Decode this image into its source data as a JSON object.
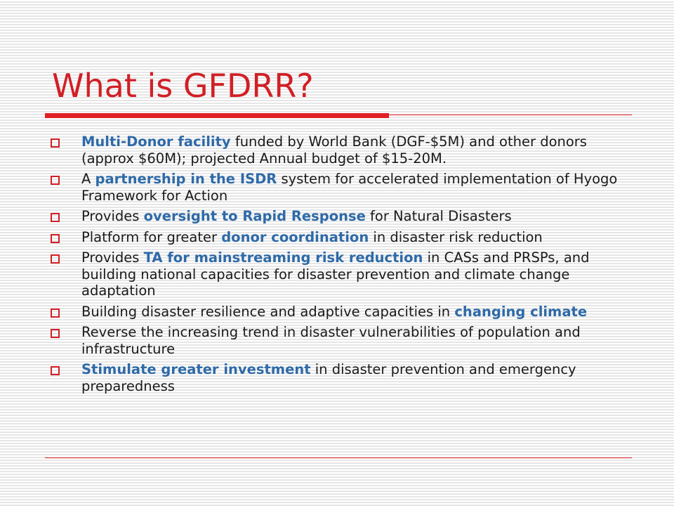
{
  "title": "What is GFDRR?",
  "colors": {
    "title": "#d11f26",
    "accent_rule": "#e01f26",
    "bullet_marker": "#d11f26",
    "highlight": "#2e6aa8",
    "body_text": "#1a1a1a"
  },
  "bullets": [
    {
      "segments": [
        {
          "text": "Multi-Donor facility",
          "highlight": true
        },
        {
          "text": " funded by World Bank (DGF-$5M) and other donors (approx $60M); projected Annual budget of $15-20M.",
          "highlight": false
        }
      ]
    },
    {
      "segments": [
        {
          "text": "A ",
          "highlight": false
        },
        {
          "text": "partnership in the ISDR",
          "highlight": true
        },
        {
          "text": " system for accelerated implementation of Hyogo Framework for Action",
          "highlight": false
        }
      ]
    },
    {
      "segments": [
        {
          "text": "Provides ",
          "highlight": false
        },
        {
          "text": "oversight to Rapid Response",
          "highlight": true
        },
        {
          "text": " for Natural Disasters",
          "highlight": false
        }
      ]
    },
    {
      "segments": [
        {
          "text": "Platform for greater ",
          "highlight": false
        },
        {
          "text": "donor coordination",
          "highlight": true
        },
        {
          "text": " in disaster risk reduction",
          "highlight": false
        }
      ]
    },
    {
      "segments": [
        {
          "text": "Provides ",
          "highlight": false
        },
        {
          "text": "TA for mainstreaming risk reduction",
          "highlight": true
        },
        {
          "text": " in CASs and PRSPs, and building national capacities for disaster prevention and climate change adaptation",
          "highlight": false
        }
      ]
    },
    {
      "segments": [
        {
          "text": "Building disaster resilience and adaptive capacities in ",
          "highlight": false
        },
        {
          "text": "changing climate",
          "highlight": true
        }
      ]
    },
    {
      "segments": [
        {
          "text": "Reverse the increasing trend in disaster vulnerabilities of population and infrastructure",
          "highlight": false
        }
      ]
    },
    {
      "segments": [
        {
          "text": "Stimulate greater investment",
          "highlight": true
        },
        {
          "text": " in disaster prevention and emergency preparedness",
          "highlight": false
        }
      ]
    }
  ]
}
